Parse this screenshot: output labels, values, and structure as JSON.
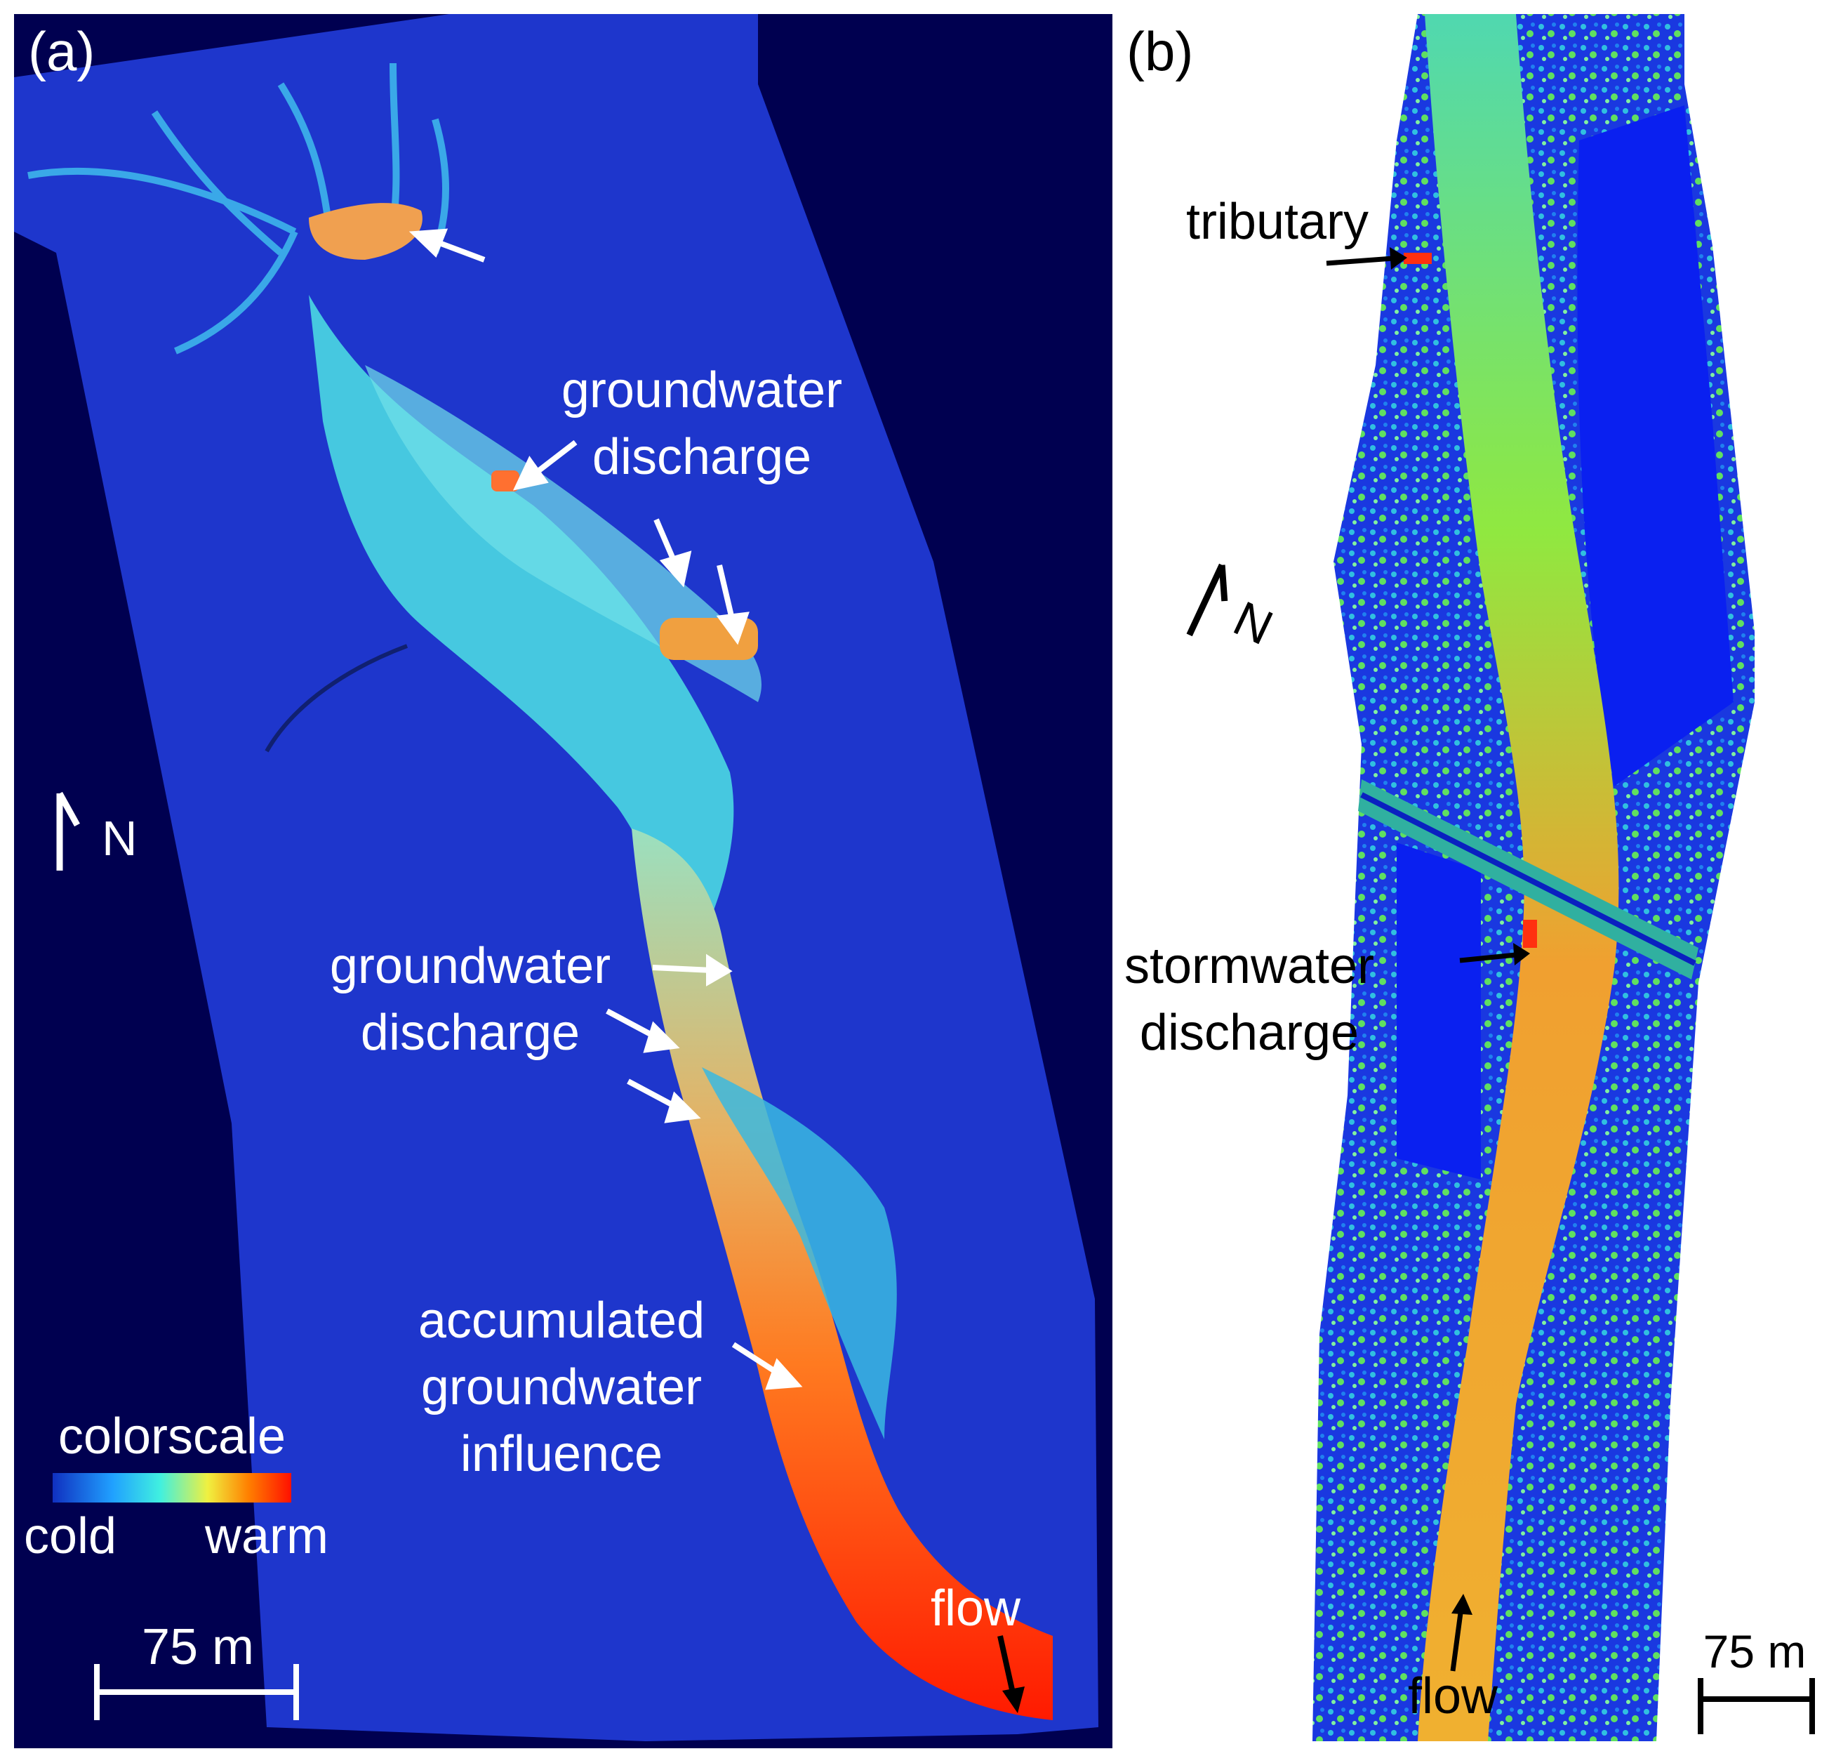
{
  "panel_a": {
    "label": "(a)",
    "annotations": {
      "gw_top_1": "groundwater",
      "gw_top_2": "discharge",
      "gw_mid_1": "groundwater",
      "gw_mid_2": "discharge",
      "acc_1": "accumulated",
      "acc_2": "groundwater",
      "acc_3": "influence",
      "flow": "flow"
    },
    "north": "N",
    "colorscale": {
      "title": "colorscale",
      "low": "cold",
      "high": "warm",
      "stops": [
        "#1030c0",
        "#20a0ff",
        "#40f0e0",
        "#f0f040",
        "#ff8000",
        "#ff1000"
      ]
    },
    "scale_bar": "75 m"
  },
  "panel_b": {
    "label": "(b)",
    "annotations": {
      "tributary": "tributary",
      "storm_1": "stormwater",
      "storm_2": "discharge",
      "flow": "flow"
    },
    "north": "N",
    "scale_bar": "75 m"
  },
  "colors": {
    "background_a": "#000050",
    "land_cold": "#1a2fd0",
    "plume_cyan": "#40d8e8",
    "river_warm": "#ff8a20",
    "river_hot": "#ff2000",
    "river_green": "#60e060"
  }
}
